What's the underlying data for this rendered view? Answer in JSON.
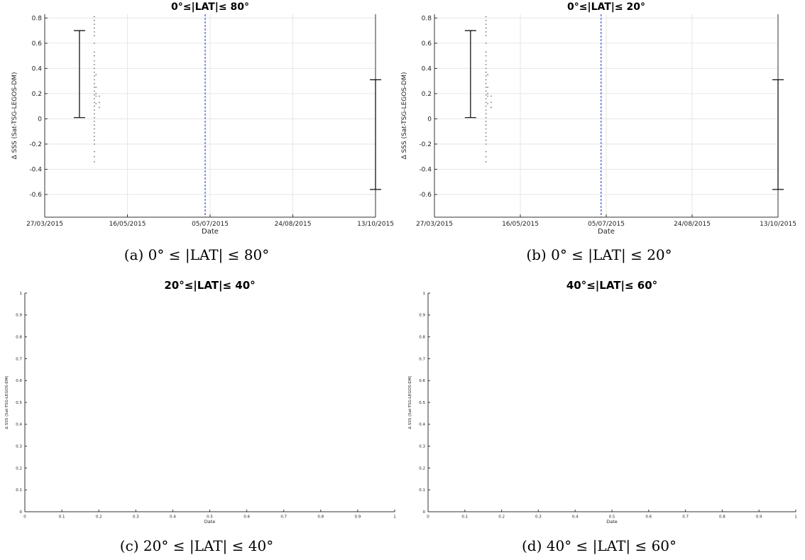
{
  "chart_data": [
    {
      "id": "a",
      "type": "scatter",
      "title": "0°≤|LAT|≤ 80°",
      "xlabel": "Date",
      "ylabel": "Δ SSS (Sat-TSG-LEGOS-DM)",
      "x_ticks": [
        "27/03/2015",
        "16/05/2015",
        "05/07/2015",
        "24/08/2015",
        "13/10/2015"
      ],
      "xlim": [
        "27/03/2015",
        "13/10/2015"
      ],
      "ylim": [
        -0.78,
        0.83
      ],
      "y_ticks": [
        "-0.6",
        "-0.4",
        "-0.2",
        "0",
        "0.2",
        "0.4",
        "0.6",
        "0.8"
      ],
      "grid": true,
      "scatter_points": [
        {
          "x": "26/04/2015",
          "y": 0.81
        },
        {
          "x": "26/04/2015",
          "y": 0.78
        },
        {
          "x": "26/04/2015",
          "y": 0.75
        },
        {
          "x": "26/04/2015",
          "y": 0.72
        },
        {
          "x": "26/04/2015",
          "y": 0.69
        },
        {
          "x": "26/04/2015",
          "y": 0.66
        },
        {
          "x": "26/04/2015",
          "y": 0.6
        },
        {
          "x": "26/04/2015",
          "y": 0.53
        },
        {
          "x": "26/04/2015",
          "y": 0.5
        },
        {
          "x": "26/04/2015",
          "y": 0.46
        },
        {
          "x": "26/04/2015",
          "y": 0.43
        },
        {
          "x": "26/04/2015",
          "y": 0.4
        },
        {
          "x": "26/04/2015",
          "y": 0.37
        },
        {
          "x": "26/04/2015",
          "y": 0.34
        },
        {
          "x": "26/04/2015",
          "y": 0.31
        },
        {
          "x": "26/04/2015",
          "y": 0.28
        },
        {
          "x": "26/04/2015",
          "y": 0.25
        },
        {
          "x": "26/04/2015",
          "y": 0.22
        },
        {
          "x": "26/04/2015",
          "y": 0.19
        },
        {
          "x": "26/04/2015",
          "y": 0.16
        },
        {
          "x": "26/04/2015",
          "y": 0.13
        },
        {
          "x": "26/04/2015",
          "y": 0.1
        },
        {
          "x": "26/04/2015",
          "y": 0.07
        },
        {
          "x": "26/04/2015",
          "y": 0.04
        },
        {
          "x": "26/04/2015",
          "y": 0.01
        },
        {
          "x": "26/04/2015",
          "y": -0.02
        },
        {
          "x": "26/04/2015",
          "y": -0.05
        },
        {
          "x": "26/04/2015",
          "y": -0.08
        },
        {
          "x": "26/04/2015",
          "y": -0.11
        },
        {
          "x": "26/04/2015",
          "y": -0.14
        },
        {
          "x": "26/04/2015",
          "y": -0.17
        },
        {
          "x": "26/04/2015",
          "y": -0.2
        },
        {
          "x": "26/04/2015",
          "y": -0.26
        },
        {
          "x": "26/04/2015",
          "y": -0.3
        },
        {
          "x": "26/04/2015",
          "y": -0.34
        },
        {
          "x": "27/04/2015",
          "y": 0.35
        },
        {
          "x": "27/04/2015",
          "y": 0.25
        },
        {
          "x": "27/04/2015",
          "y": 0.2
        },
        {
          "x": "27/04/2015",
          "y": 0.18
        },
        {
          "x": "27/04/2015",
          "y": 0.12
        },
        {
          "x": "29/04/2015",
          "y": 0.18
        },
        {
          "x": "29/04/2015",
          "y": 0.13
        },
        {
          "x": "29/04/2015",
          "y": 0.09
        }
      ],
      "error_bars": [
        {
          "x": "17/04/2015",
          "low": 0.01,
          "high": 0.7
        },
        {
          "x": "13/10/2015",
          "low": -0.56,
          "high": 0.31
        }
      ],
      "vertical_line": {
        "x": "02/07/2015",
        "color": "#4a5ae0"
      }
    },
    {
      "id": "b",
      "type": "scatter",
      "title": "0°≤|LAT|≤ 20°",
      "xlabel": "Date",
      "ylabel": "Δ SSS (Sat-TSG-LEGOS-DM)",
      "x_ticks": [
        "27/03/2015",
        "16/05/2015",
        "05/07/2015",
        "24/08/2015",
        "13/10/2015"
      ],
      "xlim": [
        "27/03/2015",
        "13/10/2015"
      ],
      "ylim": [
        -0.78,
        0.83
      ],
      "y_ticks": [
        "-0.6",
        "-0.4",
        "-0.2",
        "0",
        "0.2",
        "0.4",
        "0.6",
        "0.8"
      ],
      "grid": true,
      "scatter_points": [
        {
          "x": "26/04/2015",
          "y": 0.81
        },
        {
          "x": "26/04/2015",
          "y": 0.78
        },
        {
          "x": "26/04/2015",
          "y": 0.75
        },
        {
          "x": "26/04/2015",
          "y": 0.72
        },
        {
          "x": "26/04/2015",
          "y": 0.69
        },
        {
          "x": "26/04/2015",
          "y": 0.66
        },
        {
          "x": "26/04/2015",
          "y": 0.6
        },
        {
          "x": "26/04/2015",
          "y": 0.53
        },
        {
          "x": "26/04/2015",
          "y": 0.5
        },
        {
          "x": "26/04/2015",
          "y": 0.46
        },
        {
          "x": "26/04/2015",
          "y": 0.43
        },
        {
          "x": "26/04/2015",
          "y": 0.4
        },
        {
          "x": "26/04/2015",
          "y": 0.37
        },
        {
          "x": "26/04/2015",
          "y": 0.34
        },
        {
          "x": "26/04/2015",
          "y": 0.31
        },
        {
          "x": "26/04/2015",
          "y": 0.28
        },
        {
          "x": "26/04/2015",
          "y": 0.25
        },
        {
          "x": "26/04/2015",
          "y": 0.22
        },
        {
          "x": "26/04/2015",
          "y": 0.19
        },
        {
          "x": "26/04/2015",
          "y": 0.16
        },
        {
          "x": "26/04/2015",
          "y": 0.13
        },
        {
          "x": "26/04/2015",
          "y": 0.1
        },
        {
          "x": "26/04/2015",
          "y": 0.07
        },
        {
          "x": "26/04/2015",
          "y": 0.04
        },
        {
          "x": "26/04/2015",
          "y": 0.01
        },
        {
          "x": "26/04/2015",
          "y": -0.02
        },
        {
          "x": "26/04/2015",
          "y": -0.05
        },
        {
          "x": "26/04/2015",
          "y": -0.08
        },
        {
          "x": "26/04/2015",
          "y": -0.11
        },
        {
          "x": "26/04/2015",
          "y": -0.14
        },
        {
          "x": "26/04/2015",
          "y": -0.17
        },
        {
          "x": "26/04/2015",
          "y": -0.2
        },
        {
          "x": "26/04/2015",
          "y": -0.26
        },
        {
          "x": "26/04/2015",
          "y": -0.3
        },
        {
          "x": "26/04/2015",
          "y": -0.34
        },
        {
          "x": "27/04/2015",
          "y": 0.35
        },
        {
          "x": "27/04/2015",
          "y": 0.25
        },
        {
          "x": "27/04/2015",
          "y": 0.2
        },
        {
          "x": "27/04/2015",
          "y": 0.18
        },
        {
          "x": "27/04/2015",
          "y": 0.12
        },
        {
          "x": "29/04/2015",
          "y": 0.18
        },
        {
          "x": "29/04/2015",
          "y": 0.13
        },
        {
          "x": "29/04/2015",
          "y": 0.09
        }
      ],
      "error_bars": [
        {
          "x": "17/04/2015",
          "low": 0.01,
          "high": 0.7
        },
        {
          "x": "13/10/2015",
          "low": -0.56,
          "high": 0.31
        }
      ],
      "vertical_line": {
        "x": "02/07/2015",
        "color": "#4a5ae0"
      }
    },
    {
      "id": "c",
      "type": "scatter",
      "title": "20°≤|LAT|≤ 40°",
      "xlabel": "Date",
      "ylabel": "Δ SSS (Sat-TSG-LEGOS-DM)",
      "x_ticks": [
        "0",
        "0.1",
        "0.2",
        "0.3",
        "0.4",
        "0.5",
        "0.6",
        "0.7",
        "0.8",
        "0.9",
        "1"
      ],
      "y_ticks": [
        "0",
        "0.1",
        "0.2",
        "0.3",
        "0.4",
        "0.5",
        "0.6",
        "0.7",
        "0.8",
        "0.9",
        "1"
      ],
      "xlim": [
        0,
        1
      ],
      "ylim": [
        0,
        1
      ],
      "grid": false,
      "scatter_points": []
    },
    {
      "id": "d",
      "type": "scatter",
      "title": "40°≤|LAT|≤ 60°",
      "xlabel": "Date",
      "ylabel": "Δ SSS (Sat-TSG-LEGOS-DM)",
      "x_ticks": [
        "0",
        "0.1",
        "0.2",
        "0.3",
        "0.4",
        "0.5",
        "0.6",
        "0.7",
        "0.8",
        "0.9",
        "1"
      ],
      "y_ticks": [
        "0",
        "0.1",
        "0.2",
        "0.3",
        "0.4",
        "0.5",
        "0.6",
        "0.7",
        "0.8",
        "0.9",
        "1"
      ],
      "xlim": [
        0,
        1
      ],
      "ylim": [
        0,
        1
      ],
      "grid": false,
      "scatter_points": []
    }
  ],
  "captions": {
    "a": "(a) 0° ≤ |LAT| ≤ 80°",
    "b": "(b) 0° ≤ |LAT| ≤ 20°",
    "c": "(c) 20° ≤ |LAT| ≤ 40°",
    "d": "(d) 40° ≤ |LAT| ≤ 60°"
  }
}
